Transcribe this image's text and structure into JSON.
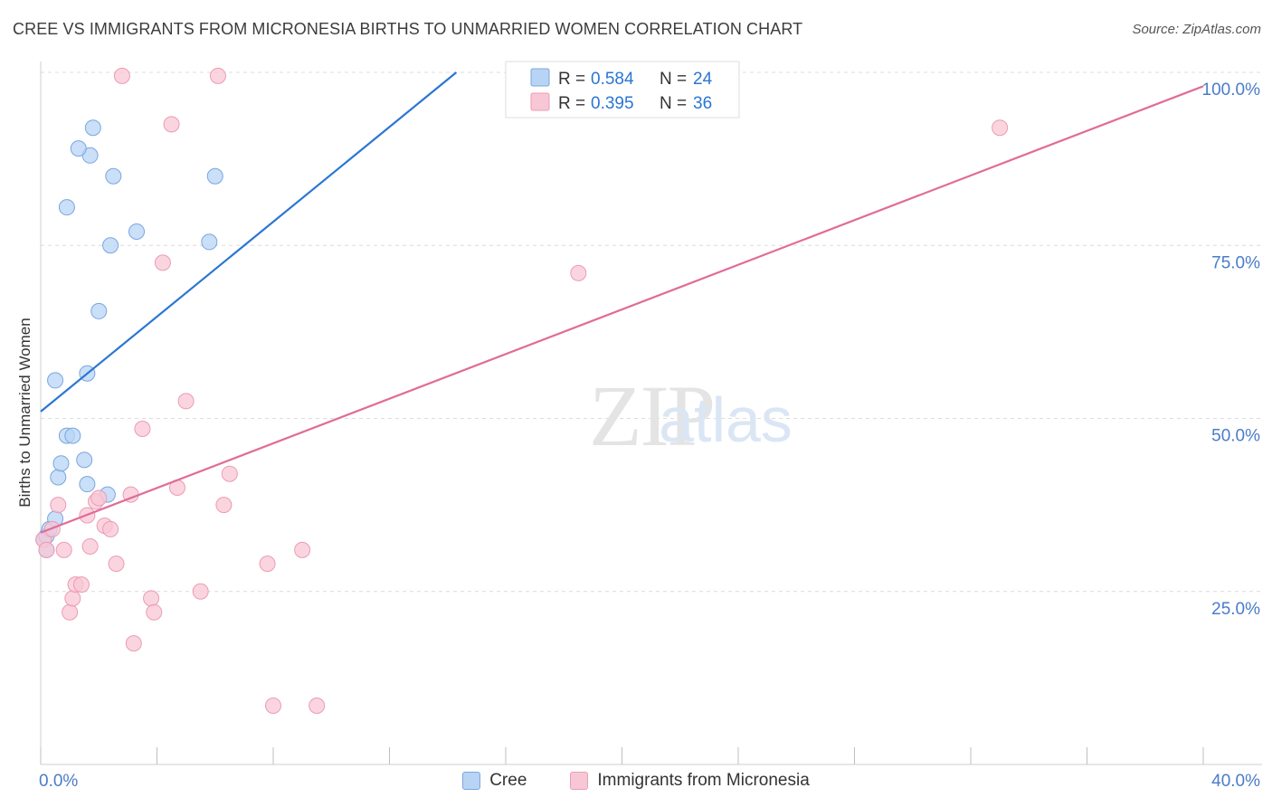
{
  "title": "CREE VS IMMIGRANTS FROM MICRONESIA BIRTHS TO UNMARRIED WOMEN CORRELATION CHART",
  "source": "Source: ZipAtlas.com",
  "watermark": {
    "zip": "ZIP",
    "atlas": "atlas"
  },
  "legend": {
    "r_label": "R =",
    "n_label": "N =",
    "items": [
      {
        "r": "0.584",
        "n": "24"
      },
      {
        "r": "0.395",
        "n": "36"
      }
    ]
  },
  "bottom_legend": [
    "Cree",
    "Immigrants from Micronesia"
  ],
  "colors": {
    "blue_fill": "#b8d4f5",
    "blue_stroke": "#7aa6de",
    "blue_line": "#2a76d2",
    "pink_fill": "#f8c7d6",
    "pink_stroke": "#ec9bb5",
    "pink_line": "#e16b98",
    "tick_text": "#4a7cc9",
    "grid": "#dcdcdc"
  },
  "chart_data": {
    "type": "scatter",
    "title": "CREE VS IMMIGRANTS FROM MICRONESIA BIRTHS TO UNMARRIED WOMEN CORRELATION CHART",
    "xlabel": "",
    "ylabel": "Births to Unmarried Women",
    "xlim": [
      0,
      40
    ],
    "ylim": [
      0,
      100
    ],
    "x_tick_labels": [
      "0.0%",
      "40.0%"
    ],
    "y_ticks": [
      25,
      50,
      75,
      100
    ],
    "y_tick_labels": [
      "25.0%",
      "50.0%",
      "75.0%",
      "100.0%"
    ],
    "series": [
      {
        "name": "Cree",
        "r": 0.584,
        "n": 24,
        "points": [
          [
            0.1,
            32.5
          ],
          [
            0.2,
            31.0
          ],
          [
            0.2,
            33.0
          ],
          [
            0.3,
            34.0
          ],
          [
            0.5,
            35.5
          ],
          [
            0.5,
            55.5
          ],
          [
            0.6,
            41.5
          ],
          [
            0.7,
            43.5
          ],
          [
            0.9,
            47.5
          ],
          [
            1.1,
            47.5
          ],
          [
            1.5,
            44.0
          ],
          [
            1.6,
            40.5
          ],
          [
            2.3,
            39.0
          ],
          [
            1.6,
            56.5
          ],
          [
            2.0,
            65.5
          ],
          [
            0.9,
            80.5
          ],
          [
            2.4,
            75.0
          ],
          [
            3.3,
            77.0
          ],
          [
            5.8,
            75.5
          ],
          [
            6.0,
            85.0
          ],
          [
            2.5,
            85.0
          ],
          [
            1.7,
            88.0
          ],
          [
            1.8,
            92.0
          ],
          [
            1.3,
            89.0
          ]
        ],
        "trend": {
          "x0": 0,
          "y0": 51.0,
          "x1": 14.3,
          "y1": 100.0
        }
      },
      {
        "name": "Immigrants from Micronesia",
        "r": 0.395,
        "n": 36,
        "points": [
          [
            0.1,
            32.5
          ],
          [
            0.2,
            31.0
          ],
          [
            0.4,
            34.0
          ],
          [
            0.6,
            37.5
          ],
          [
            0.8,
            31.0
          ],
          [
            1.0,
            22.0
          ],
          [
            1.1,
            24.0
          ],
          [
            1.2,
            26.0
          ],
          [
            1.4,
            26.0
          ],
          [
            1.6,
            36.0
          ],
          [
            1.7,
            31.5
          ],
          [
            1.9,
            38.0
          ],
          [
            2.0,
            38.5
          ],
          [
            2.2,
            34.5
          ],
          [
            2.4,
            34.0
          ],
          [
            2.6,
            29.0
          ],
          [
            3.2,
            17.5
          ],
          [
            3.1,
            39.0
          ],
          [
            3.5,
            48.5
          ],
          [
            3.8,
            24.0
          ],
          [
            3.9,
            22.0
          ],
          [
            4.2,
            72.5
          ],
          [
            4.5,
            92.5
          ],
          [
            4.7,
            40.0
          ],
          [
            5.0,
            52.5
          ],
          [
            5.5,
            25.0
          ],
          [
            6.3,
            37.5
          ],
          [
            6.5,
            42.0
          ],
          [
            7.8,
            29.0
          ],
          [
            8.0,
            8.5
          ],
          [
            9.0,
            31.0
          ],
          [
            2.8,
            99.5
          ],
          [
            6.1,
            99.5
          ],
          [
            18.5,
            71.0
          ],
          [
            33.0,
            92.0
          ],
          [
            9.5,
            8.5
          ]
        ],
        "trend": {
          "x0": 0,
          "y0": 33.5,
          "x1": 40,
          "y1": 98.0
        }
      }
    ]
  }
}
